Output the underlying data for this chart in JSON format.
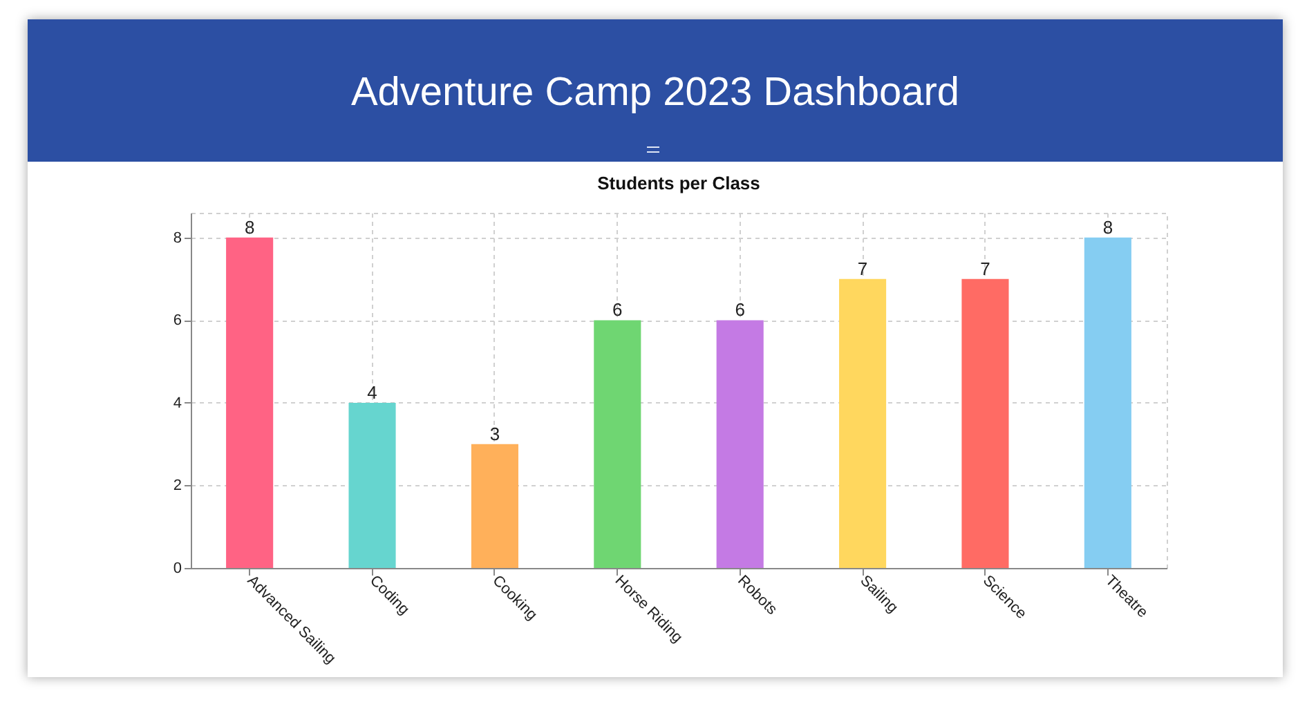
{
  "chart_data": {
    "type": "bar",
    "title": "Adventure Camp 2023 Dashboard",
    "subtitle": "Students per Class",
    "categories": [
      "Advanced Sailing",
      "Coding",
      "Cooking",
      "Horse Riding",
      "Robots",
      "Sailing",
      "Science",
      "Theatre"
    ],
    "values": [
      8,
      4,
      3,
      6,
      6,
      7,
      7,
      8
    ],
    "colors": [
      "#ff6384",
      "#66d5cf",
      "#ffb05a",
      "#6fd672",
      "#c47ae4",
      "#ffd75e",
      "#ff6b64",
      "#85cdf2"
    ],
    "ylim": [
      0,
      8.6
    ],
    "yticks": [
      0,
      2,
      4,
      6,
      8
    ],
    "grid": true,
    "data_labels": true
  }
}
